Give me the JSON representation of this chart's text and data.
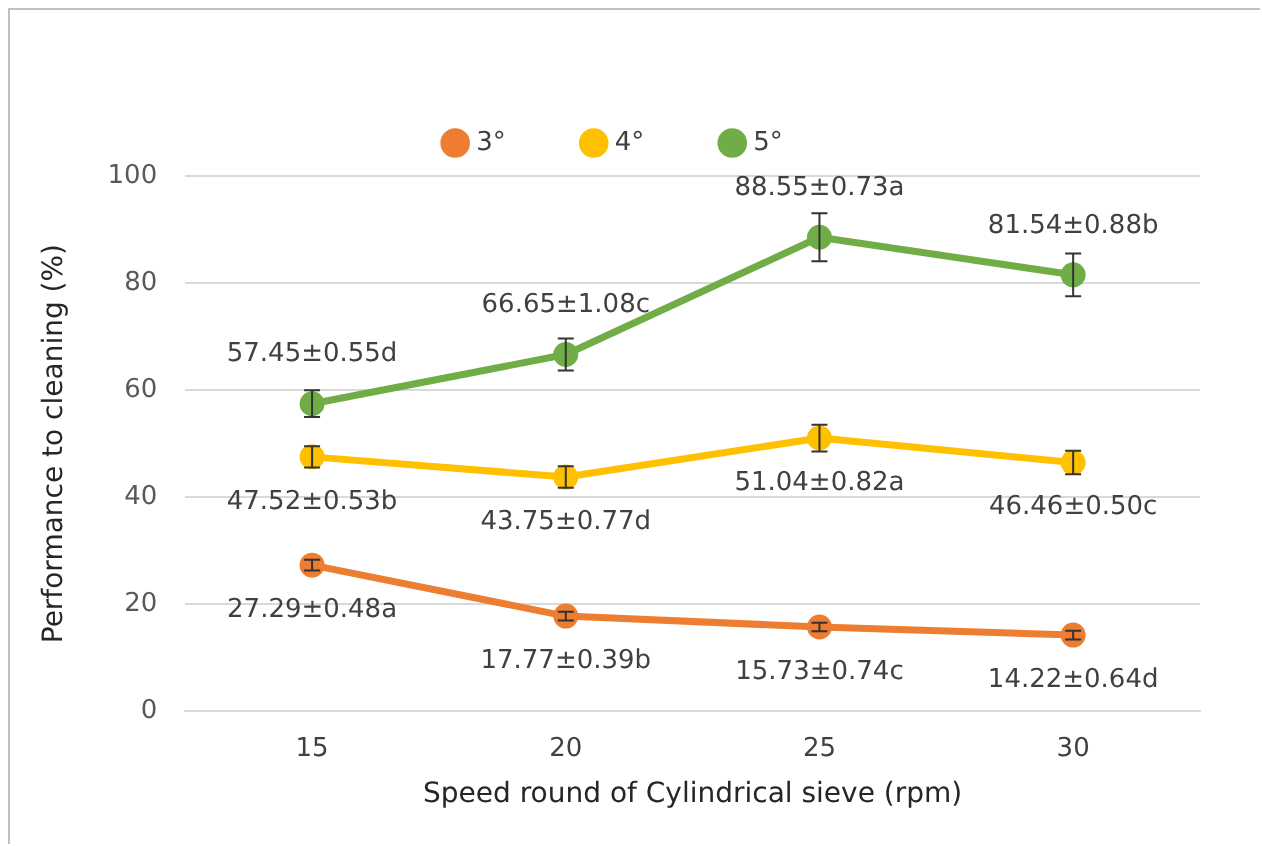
{
  "chart_data": {
    "type": "line",
    "xlabel": "Speed round of Cylindrical sieve (rpm)",
    "ylabel": "Performance to cleaning (%)",
    "categories": [
      "15",
      "20",
      "25",
      "30"
    ],
    "series": [
      {
        "name": "3°",
        "color": "#ed7d31",
        "values": [
          27.29,
          17.77,
          15.73,
          14.22
        ],
        "errors": [
          1,
          0.8,
          0.8,
          0.8
        ],
        "value_labels": [
          "27.29±0.48a",
          "17.77±0.39b",
          "15.73±0.74c",
          "14.22±0.64d"
        ]
      },
      {
        "name": "4°",
        "color": "#ffc000",
        "values": [
          47.52,
          43.75,
          51.04,
          46.46
        ],
        "errors": [
          2,
          2,
          2.5,
          2.2
        ],
        "value_labels": [
          "47.52±0.53b",
          "43.75±0.77d",
          "51.04±0.82a",
          "46.46±0.50c"
        ]
      },
      {
        "name": "5°",
        "color": "#70ad47",
        "values": [
          57.45,
          66.65,
          88.55,
          81.54
        ],
        "errors": [
          2.5,
          3,
          4.5,
          4
        ],
        "value_labels": [
          "57.45±0.55d",
          "66.65±1.08c",
          "88.55±0.73a",
          "81.54±0.88b"
        ]
      }
    ],
    "ylim": [
      0,
      100
    ],
    "yticks": [
      0,
      20,
      40,
      60,
      80,
      100
    ],
    "grid": "y",
    "legend": "top",
    "marker": "circle",
    "line_style": "solid"
  }
}
